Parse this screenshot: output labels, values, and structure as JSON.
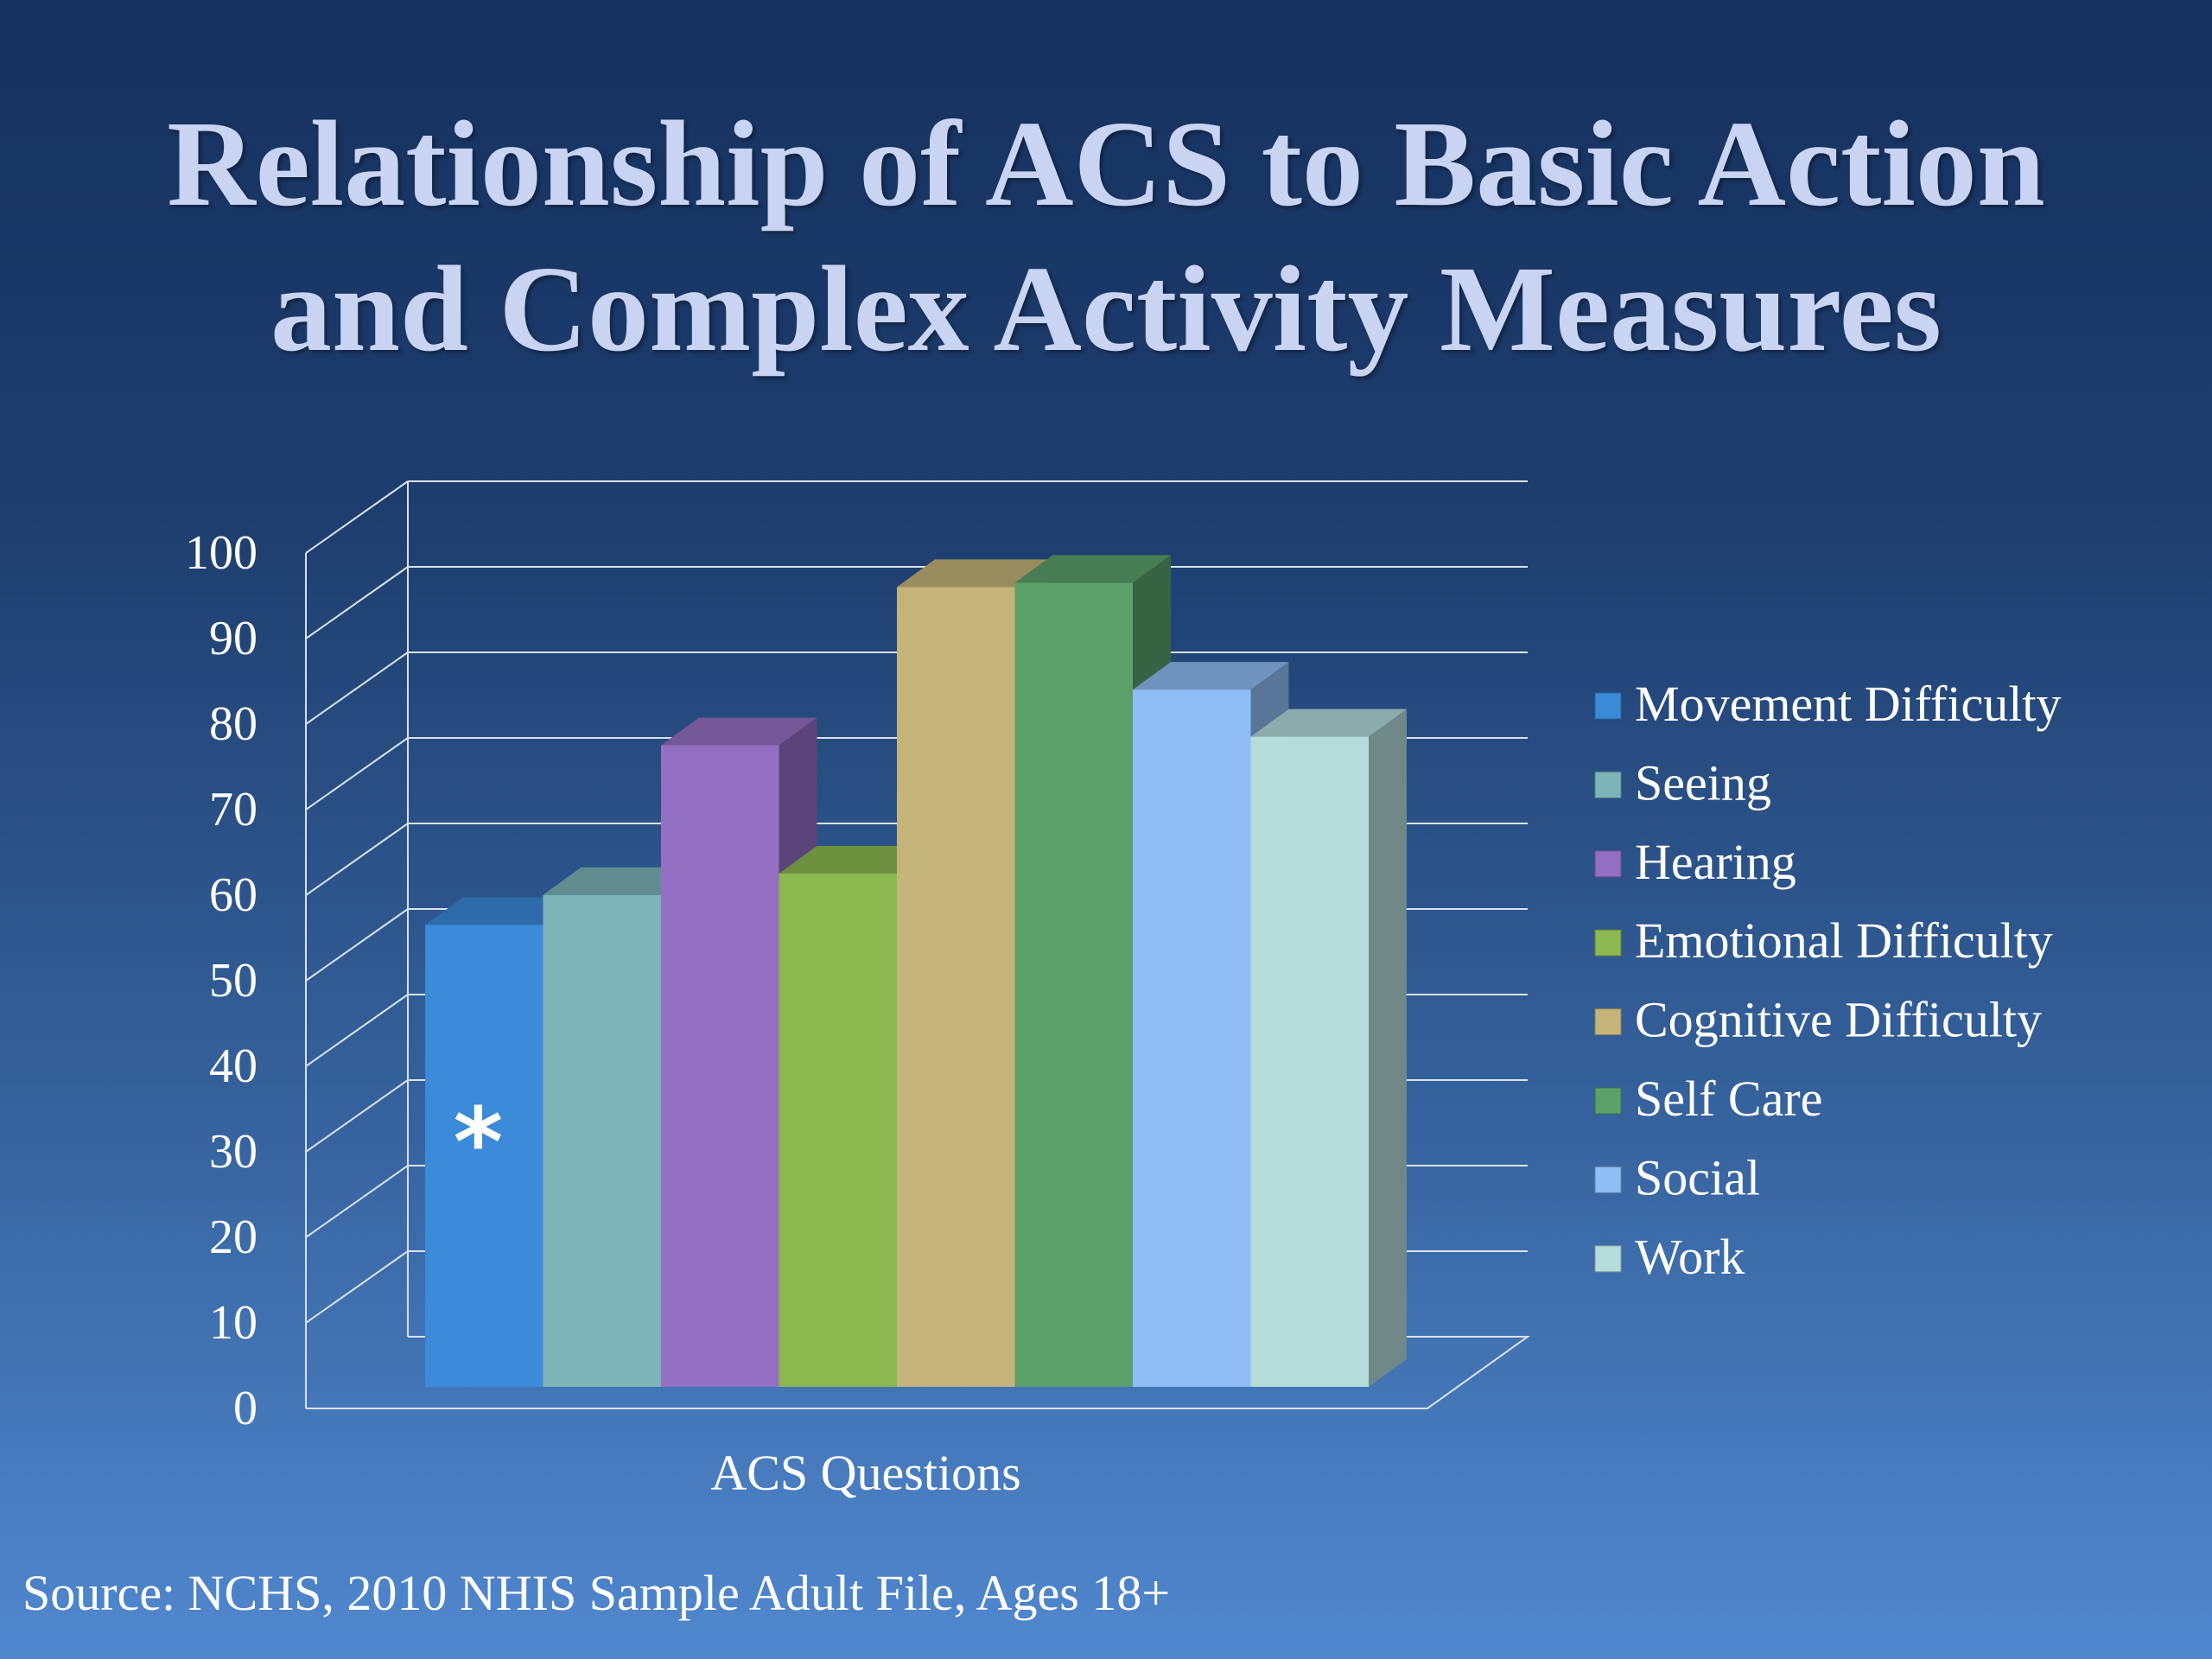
{
  "title_line1": "Relationship of ACS to Basic Action",
  "title_line2": "and Complex Activity Measures",
  "source": "Source: NCHS, 2010 NHIS Sample Adult File, Ages 18+",
  "chart_data": {
    "type": "bar",
    "title": "Relationship of ACS to Basic Action and Complex Activity Measures",
    "xlabel": "ACS Questions",
    "ylabel": "",
    "ylim": [
      0,
      100
    ],
    "yticks": [
      0,
      10,
      20,
      30,
      40,
      50,
      60,
      70,
      80,
      90,
      100
    ],
    "categories": [
      "ACS Questions"
    ],
    "grid": true,
    "legend_position": "right",
    "three_d": true,
    "series": [
      {
        "name": "Movement Difficulty",
        "values": [
          54
        ],
        "color": "#3b8bd9",
        "annotation": "*"
      },
      {
        "name": "Seeing",
        "values": [
          57.5
        ],
        "color": "#7cb4b8"
      },
      {
        "name": "Hearing",
        "values": [
          75
        ],
        "color": "#9370c2"
      },
      {
        "name": "Emotional Difficulty",
        "values": [
          60
        ],
        "color": "#8cb850"
      },
      {
        "name": "Cognitive Difficulty",
        "values": [
          93.5
        ],
        "color": "#c4b47a"
      },
      {
        "name": "Self Care",
        "values": [
          94
        ],
        "color": "#5ba06a"
      },
      {
        "name": "Social",
        "values": [
          81.5
        ],
        "color": "#8fbdf5"
      },
      {
        "name": "Work",
        "values": [
          76
        ],
        "color": "#b3dcdb"
      }
    ]
  }
}
